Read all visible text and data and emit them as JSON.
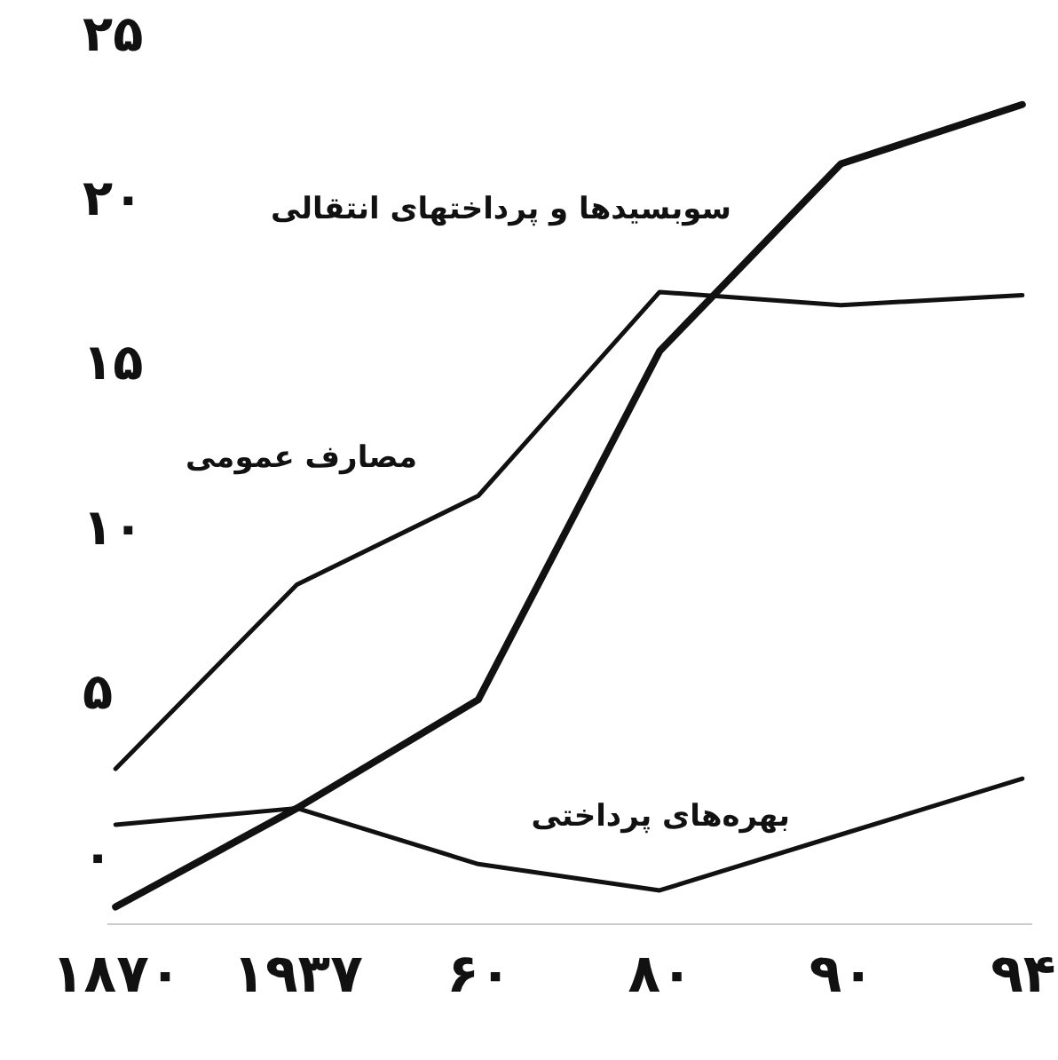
{
  "chart_data": {
    "type": "line",
    "categories": [
      "۱۸۷۰",
      "۱۹۳۷",
      "۶۰",
      "۸۰",
      "۹۰",
      "۹۴"
    ],
    "series": [
      {
        "name": "مصارف عمومی",
        "color": "#111111",
        "values": [
          2.7,
          8.3,
          11,
          17.2,
          16.8,
          17.1
        ]
      },
      {
        "name": "سوبسیدها و پرداختهای انتقالی",
        "color": "#111111",
        "values": [
          -1.5,
          1.5,
          4.8,
          15.4,
          21.1,
          22.9
        ]
      },
      {
        "name": "بهره‌های پرداختی",
        "color": "#111111",
        "values": [
          1.0,
          1.5,
          -0.2,
          -1.0,
          0.7,
          2.4
        ]
      }
    ],
    "ylim": [
      -2,
      25
    ],
    "yticks": [
      {
        "value": 0,
        "label": "۰"
      },
      {
        "value": 5,
        "label": "۵"
      },
      {
        "value": 10,
        "label": "۱۰"
      },
      {
        "value": 15,
        "label": "۱۵"
      },
      {
        "value": 20,
        "label": "۲۰"
      },
      {
        "value": 25,
        "label": "۲۵"
      }
    ],
    "grid": false,
    "legend": false,
    "marker": "none",
    "line_style": "solid"
  }
}
